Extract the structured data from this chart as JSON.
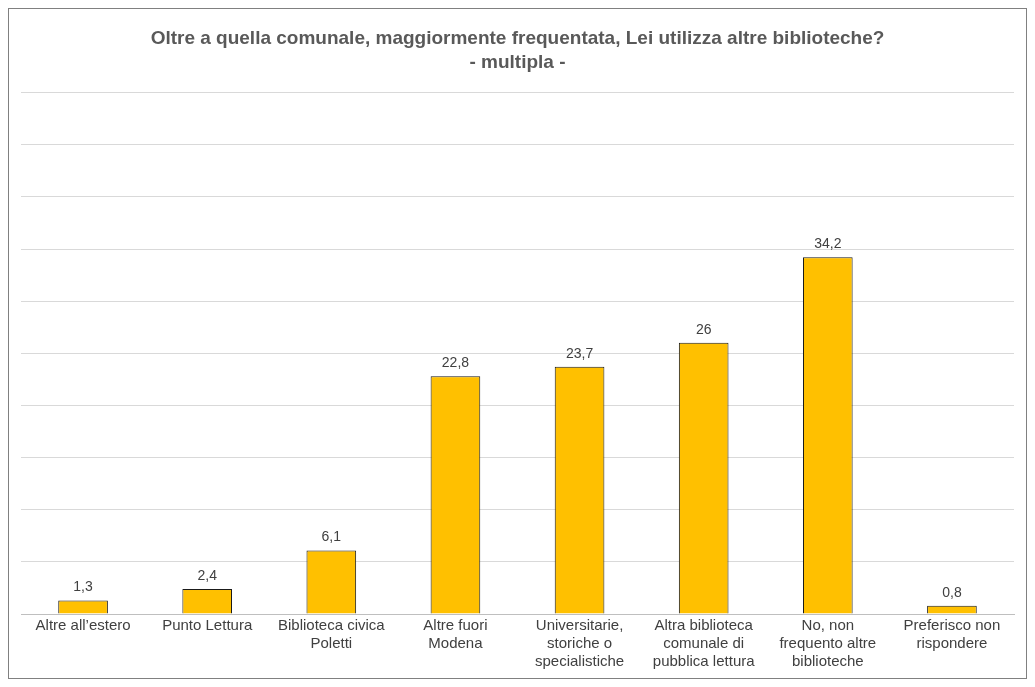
{
  "chart_data": {
    "type": "bar",
    "title": "Oltre a quella comunale, maggiormente frequentata, Lei utilizza altre biblioteche?",
    "subtitle": "- multipla -",
    "categories": [
      "Altre all’estero",
      "Punto Lettura",
      "Biblioteca civica Poletti",
      "Altre fuori Modena",
      "Universitarie, storiche o specialistiche",
      "Altra biblioteca comunale di pubblica lettura",
      "No, non frequento altre biblioteche",
      "Preferisco non rispondere"
    ],
    "values": [
      1.3,
      2.4,
      6.1,
      22.8,
      23.7,
      26,
      34.2,
      0.8
    ],
    "value_labels": [
      "1,3",
      "2,4",
      "6,1",
      "22,8",
      "23,7",
      "26",
      "34,2",
      "0,8"
    ],
    "color": "#ffc000",
    "ylim": [
      0,
      50
    ],
    "tick_labels": "x",
    "grid": "y",
    "legend": false
  }
}
